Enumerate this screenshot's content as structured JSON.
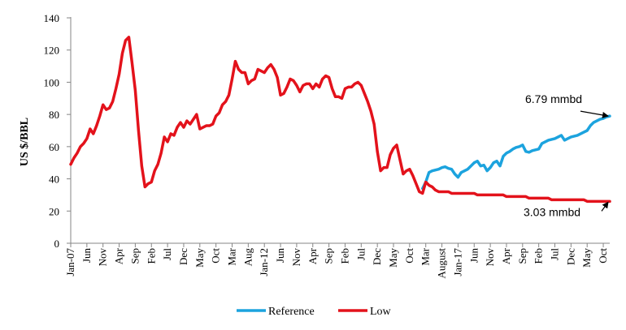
{
  "chart_data": {
    "type": "line",
    "xlabel": "",
    "ylabel": "US $/BBL",
    "ylim": [
      0,
      140
    ],
    "yticks": [
      0,
      20,
      40,
      60,
      80,
      100,
      120,
      140
    ],
    "grid": false,
    "legend_position": "bottom",
    "x_range_months": [
      "2007-01",
      "2020-12"
    ],
    "x_tick_labels": [
      {
        "date": "2007-01",
        "label": "Jan-07"
      },
      {
        "date": "2007-06",
        "label": "Jun"
      },
      {
        "date": "2007-11",
        "label": "Nov"
      },
      {
        "date": "2008-04",
        "label": "Apr"
      },
      {
        "date": "2008-09",
        "label": "Sep"
      },
      {
        "date": "2009-02",
        "label": "Feb"
      },
      {
        "date": "2009-07",
        "label": "Jul"
      },
      {
        "date": "2009-12",
        "label": "Dec"
      },
      {
        "date": "2010-05",
        "label": "May"
      },
      {
        "date": "2010-10",
        "label": "Oct"
      },
      {
        "date": "2011-03",
        "label": "Mar"
      },
      {
        "date": "2011-08",
        "label": "Aug"
      },
      {
        "date": "2012-01",
        "label": "Jan-12"
      },
      {
        "date": "2012-06",
        "label": "Jun"
      },
      {
        "date": "2012-11",
        "label": "Nov"
      },
      {
        "date": "2013-04",
        "label": "Apr"
      },
      {
        "date": "2013-09",
        "label": "Sep"
      },
      {
        "date": "2014-02",
        "label": "Feb"
      },
      {
        "date": "2014-07",
        "label": "Jul"
      },
      {
        "date": "2014-12",
        "label": "Dec"
      },
      {
        "date": "2015-05",
        "label": "May"
      },
      {
        "date": "2015-10",
        "label": "Oct"
      },
      {
        "date": "2016-03",
        "label": "Mar"
      },
      {
        "date": "2016-08",
        "label": "August"
      },
      {
        "date": "2017-01",
        "label": "Jan-17"
      },
      {
        "date": "2017-06",
        "label": "Jun"
      },
      {
        "date": "2017-11",
        "label": "Nov"
      },
      {
        "date": "2018-04",
        "label": "Apr"
      },
      {
        "date": "2018-09",
        "label": "Sep"
      },
      {
        "date": "2019-02",
        "label": "Feb"
      },
      {
        "date": "2019-07",
        "label": "Jul"
      },
      {
        "date": "2019-12",
        "label": "Dec"
      },
      {
        "date": "2020-05",
        "label": "May"
      },
      {
        "date": "2020-10",
        "label": "Oct"
      }
    ],
    "series": [
      {
        "name": "Reference",
        "color": "#1CA3DE",
        "points": [
          [
            "2016-02",
            34
          ],
          [
            "2016-03",
            38
          ],
          [
            "2016-04",
            44
          ],
          [
            "2016-05",
            45
          ],
          [
            "2016-06",
            45.5
          ],
          [
            "2016-07",
            46
          ],
          [
            "2016-08",
            47
          ],
          [
            "2016-09",
            47.5
          ],
          [
            "2016-10",
            46.5
          ],
          [
            "2016-11",
            46
          ],
          [
            "2016-12",
            43
          ],
          [
            "2017-01",
            41
          ],
          [
            "2017-02",
            44
          ],
          [
            "2017-03",
            45
          ],
          [
            "2017-04",
            46
          ],
          [
            "2017-05",
            48
          ],
          [
            "2017-06",
            50
          ],
          [
            "2017-07",
            51
          ],
          [
            "2017-08",
            48
          ],
          [
            "2017-09",
            48.5
          ],
          [
            "2017-10",
            45
          ],
          [
            "2017-11",
            47
          ],
          [
            "2017-12",
            50
          ],
          [
            "2018-01",
            51
          ],
          [
            "2018-02",
            48
          ],
          [
            "2018-03",
            54
          ],
          [
            "2018-04",
            56
          ],
          [
            "2018-05",
            57
          ],
          [
            "2018-06",
            58.5
          ],
          [
            "2018-07",
            59.5
          ],
          [
            "2018-08",
            60
          ],
          [
            "2018-09",
            61
          ],
          [
            "2018-10",
            57
          ],
          [
            "2018-11",
            56.5
          ],
          [
            "2018-12",
            57.5
          ],
          [
            "2019-01",
            58
          ],
          [
            "2019-02",
            58.5
          ],
          [
            "2019-03",
            62
          ],
          [
            "2019-04",
            63
          ],
          [
            "2019-05",
            64
          ],
          [
            "2019-06",
            64.5
          ],
          [
            "2019-07",
            65
          ],
          [
            "2019-08",
            66
          ],
          [
            "2019-09",
            67
          ],
          [
            "2019-10",
            64
          ],
          [
            "2019-11",
            65
          ],
          [
            "2019-12",
            66
          ],
          [
            "2020-01",
            66.5
          ],
          [
            "2020-02",
            67
          ],
          [
            "2020-03",
            68
          ],
          [
            "2020-04",
            69
          ],
          [
            "2020-05",
            70
          ],
          [
            "2020-06",
            73
          ],
          [
            "2020-07",
            75
          ],
          [
            "2020-08",
            76
          ],
          [
            "2020-09",
            77
          ],
          [
            "2020-10",
            77.5
          ],
          [
            "2020-11",
            78.5
          ],
          [
            "2020-12",
            79
          ]
        ]
      },
      {
        "name": "Low",
        "color": "#E3121B",
        "points": [
          [
            "2007-01",
            49
          ],
          [
            "2007-02",
            53
          ],
          [
            "2007-03",
            56
          ],
          [
            "2007-04",
            60
          ],
          [
            "2007-05",
            62
          ],
          [
            "2007-06",
            65
          ],
          [
            "2007-07",
            71
          ],
          [
            "2007-08",
            68
          ],
          [
            "2007-09",
            73
          ],
          [
            "2007-10",
            79
          ],
          [
            "2007-11",
            86
          ],
          [
            "2007-12",
            83
          ],
          [
            "2008-01",
            84
          ],
          [
            "2008-02",
            88
          ],
          [
            "2008-03",
            96
          ],
          [
            "2008-04",
            105
          ],
          [
            "2008-05",
            118
          ],
          [
            "2008-06",
            126
          ],
          [
            "2008-07",
            128
          ],
          [
            "2008-08",
            112
          ],
          [
            "2008-09",
            95
          ],
          [
            "2008-10",
            70
          ],
          [
            "2008-11",
            48
          ],
          [
            "2008-12",
            35
          ],
          [
            "2009-01",
            37
          ],
          [
            "2009-02",
            38
          ],
          [
            "2009-03",
            45
          ],
          [
            "2009-04",
            49
          ],
          [
            "2009-05",
            56
          ],
          [
            "2009-06",
            66
          ],
          [
            "2009-07",
            63
          ],
          [
            "2009-08",
            68
          ],
          [
            "2009-09",
            67
          ],
          [
            "2009-10",
            72
          ],
          [
            "2009-11",
            75
          ],
          [
            "2009-12",
            72
          ],
          [
            "2010-01",
            76
          ],
          [
            "2010-02",
            74
          ],
          [
            "2010-03",
            77
          ],
          [
            "2010-04",
            80
          ],
          [
            "2010-05",
            71
          ],
          [
            "2010-06",
            72
          ],
          [
            "2010-07",
            73
          ],
          [
            "2010-08",
            73
          ],
          [
            "2010-09",
            74
          ],
          [
            "2010-10",
            79
          ],
          [
            "2010-11",
            81
          ],
          [
            "2010-12",
            86
          ],
          [
            "2011-01",
            88
          ],
          [
            "2011-02",
            92
          ],
          [
            "2011-03",
            102
          ],
          [
            "2011-04",
            113
          ],
          [
            "2011-05",
            108
          ],
          [
            "2011-06",
            106
          ],
          [
            "2011-07",
            106
          ],
          [
            "2011-08",
            99
          ],
          [
            "2011-09",
            101
          ],
          [
            "2011-10",
            102
          ],
          [
            "2011-11",
            108
          ],
          [
            "2011-12",
            107
          ],
          [
            "2012-01",
            106
          ],
          [
            "2012-02",
            109
          ],
          [
            "2012-03",
            111
          ],
          [
            "2012-04",
            108
          ],
          [
            "2012-05",
            103
          ],
          [
            "2012-06",
            92
          ],
          [
            "2012-07",
            93
          ],
          [
            "2012-08",
            97
          ],
          [
            "2012-09",
            102
          ],
          [
            "2012-10",
            101
          ],
          [
            "2012-11",
            98
          ],
          [
            "2012-12",
            94
          ],
          [
            "2013-01",
            98
          ],
          [
            "2013-02",
            99
          ],
          [
            "2013-03",
            99
          ],
          [
            "2013-04",
            96
          ],
          [
            "2013-05",
            99
          ],
          [
            "2013-06",
            97
          ],
          [
            "2013-07",
            102
          ],
          [
            "2013-08",
            104
          ],
          [
            "2013-09",
            103
          ],
          [
            "2013-10",
            96
          ],
          [
            "2013-11",
            91
          ],
          [
            "2013-12",
            91
          ],
          [
            "2014-01",
            90
          ],
          [
            "2014-02",
            96
          ],
          [
            "2014-03",
            97
          ],
          [
            "2014-04",
            97
          ],
          [
            "2014-05",
            99
          ],
          [
            "2014-06",
            100
          ],
          [
            "2014-07",
            98
          ],
          [
            "2014-08",
            93
          ],
          [
            "2014-09",
            88
          ],
          [
            "2014-10",
            82
          ],
          [
            "2014-11",
            74
          ],
          [
            "2014-12",
            57
          ],
          [
            "2015-01",
            45
          ],
          [
            "2015-02",
            47
          ],
          [
            "2015-03",
            47
          ],
          [
            "2015-04",
            55
          ],
          [
            "2015-05",
            59
          ],
          [
            "2015-06",
            61
          ],
          [
            "2015-07",
            52
          ],
          [
            "2015-08",
            43
          ],
          [
            "2015-09",
            45
          ],
          [
            "2015-10",
            46
          ],
          [
            "2015-11",
            42
          ],
          [
            "2015-12",
            37
          ],
          [
            "2016-01",
            32
          ],
          [
            "2016-02",
            31
          ],
          [
            "2016-03",
            38
          ],
          [
            "2016-04",
            36
          ],
          [
            "2016-05",
            35
          ],
          [
            "2016-06",
            33
          ],
          [
            "2016-07",
            32
          ],
          [
            "2016-08",
            32
          ],
          [
            "2016-10",
            32
          ],
          [
            "2016-11",
            31
          ],
          [
            "2017-06",
            31
          ],
          [
            "2017-07",
            30
          ],
          [
            "2018-03",
            30
          ],
          [
            "2018-04",
            29
          ],
          [
            "2018-10",
            29
          ],
          [
            "2018-11",
            28
          ],
          [
            "2019-05",
            28
          ],
          [
            "2019-06",
            27
          ],
          [
            "2020-04",
            27
          ],
          [
            "2020-05",
            26
          ],
          [
            "2020-12",
            26
          ]
        ]
      }
    ],
    "annotations": [
      {
        "text": "6.79 mmbd",
        "series": "Reference"
      },
      {
        "text": "3.03 mmbd",
        "series": "Low"
      }
    ]
  }
}
